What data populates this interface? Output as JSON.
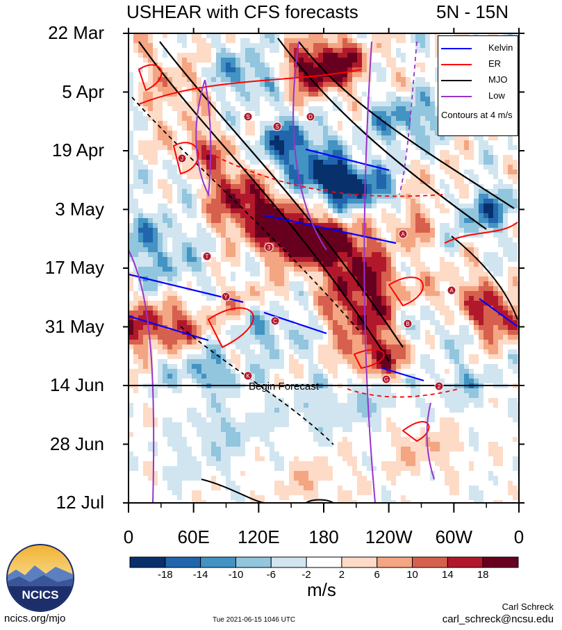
{
  "header": {
    "title": "USHEAR with CFS forecasts",
    "region": "5N - 15N"
  },
  "chart_data": {
    "type": "heatmap",
    "title": "USHEAR with CFS forecasts",
    "subtitle": "5N - 15N",
    "y_ticks": [
      "22 Mar",
      "5 Apr",
      "19 Apr",
      "3 May",
      "17 May",
      "31 May",
      "14 Jun",
      "28 Jun",
      "12 Jul"
    ],
    "x_ticks": [
      "0",
      "60E",
      "120E",
      "180",
      "120W",
      "60W",
      "0"
    ],
    "colorbar_ticks": [
      "-18",
      "-14",
      "-10",
      "-6",
      "-2",
      "2",
      "6",
      "10",
      "14",
      "18"
    ],
    "colorbar_colors": [
      "#08306b",
      "#2166ac",
      "#4393c3",
      "#92c5de",
      "#d1e5f0",
      "#ffffff",
      "#fddbc7",
      "#f4a582",
      "#d6604d",
      "#b2182b",
      "#67001f"
    ],
    "units": "m/s",
    "legend": {
      "position": "top-right",
      "entries": [
        {
          "name": "Kelvin",
          "color": "#0000ff"
        },
        {
          "name": "ER",
          "color": "#ff0000"
        },
        {
          "name": "MJO",
          "color": "#000000"
        },
        {
          "name": "Low",
          "color": "#9932cc"
        }
      ],
      "note": "Contours at 4 m/s"
    },
    "forecast_start": "14 Jun",
    "forecast_label": "Begin Forecast",
    "storm_markers": [
      "J",
      "3",
      "S",
      "S",
      "T",
      "Y",
      "C",
      "K",
      "A",
      "A",
      "B",
      "G",
      "D",
      "2"
    ]
  },
  "footer": {
    "logo_text": "NCICS",
    "url": "ncics.org/mjo",
    "timestamp": "Tue 2021-06-15 1046 UTC",
    "author": "Carl Schreck",
    "email": "carl_schreck@ncsu.edu"
  }
}
